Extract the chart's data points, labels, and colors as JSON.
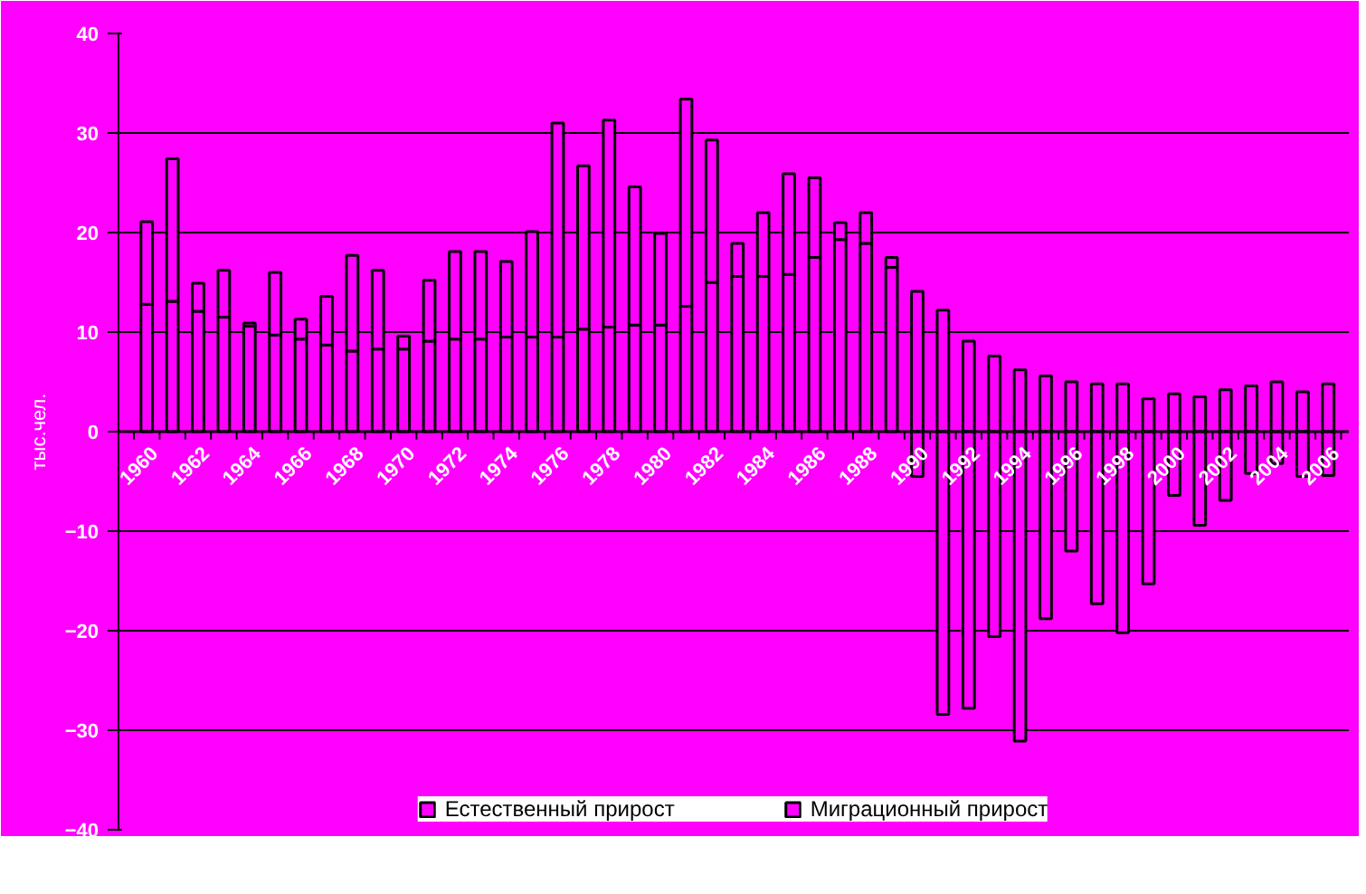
{
  "chart_data": {
    "type": "bar",
    "stacked": true,
    "ylabel": "тыс.чел.",
    "categories": [
      "1960",
      null,
      "1962",
      null,
      "1964",
      null,
      "1966",
      null,
      "1968",
      null,
      "1970",
      null,
      "1972",
      null,
      "1974",
      null,
      "1976",
      null,
      "1978",
      null,
      "1980",
      null,
      "1982",
      null,
      "1984",
      null,
      "1986",
      null,
      "1988",
      null,
      "1990",
      null,
      "1992",
      null,
      "1994",
      null,
      "1996",
      null,
      "1998",
      null,
      "2000",
      null,
      "2002",
      null,
      "2004",
      null,
      "2006"
    ],
    "series": [
      {
        "name": "Естественный прирост",
        "color": "#ff00ff",
        "values": [
          12.8,
          13.1,
          12.1,
          11.5,
          10.6,
          9.7,
          9.3,
          8.7,
          8.1,
          8.3,
          8.3,
          9.1,
          9.3,
          9.3,
          9.5,
          9.5,
          9.5,
          10.3,
          10.5,
          10.7,
          10.7,
          12.6,
          15.0,
          15.6,
          15.6,
          15.8,
          17.5,
          19.3,
          18.9,
          16.5,
          14.1,
          12.2,
          9.1,
          7.6,
          6.2,
          5.6,
          5.0,
          4.8,
          4.8,
          3.3,
          3.8,
          3.5,
          4.2,
          4.6,
          5.0,
          4.0,
          4.8
        ]
      },
      {
        "name": "Миграционный прирост",
        "color": "#ff00ff",
        "values": [
          8.3,
          14.3,
          2.8,
          4.7,
          0.3,
          6.3,
          2.0,
          4.9,
          9.6,
          7.9,
          1.3,
          6.1,
          8.8,
          8.8,
          7.6,
          10.6,
          21.5,
          16.4,
          20.8,
          13.9,
          9.2,
          20.8,
          14.3,
          3.3,
          6.4,
          10.1,
          8.0,
          1.7,
          3.1,
          1.0,
          -4.5,
          -28.4,
          -27.8,
          -20.6,
          -31.1,
          -18.8,
          -12.0,
          -17.3,
          -20.2,
          -15.3,
          -6.4,
          -9.4,
          -6.9,
          -4.2,
          -3.2,
          -4.5,
          -4.4
        ]
      }
    ],
    "ylim": [
      -40,
      40
    ],
    "yticks": [
      -40,
      -30,
      -20,
      -10,
      0,
      10,
      20,
      30,
      40
    ],
    "grid": "y",
    "legend": "bottom"
  }
}
